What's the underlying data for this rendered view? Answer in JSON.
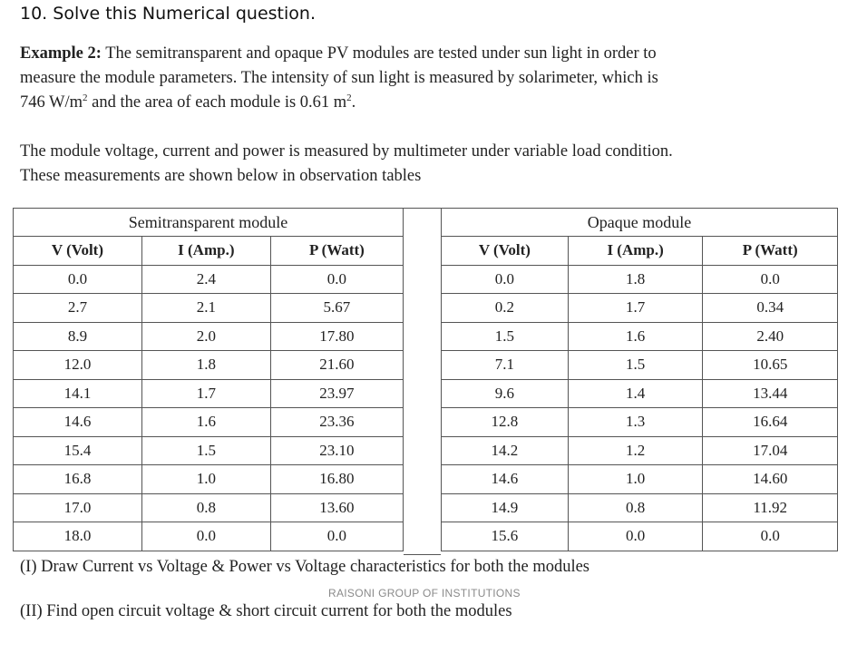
{
  "question_title": "10. Solve this Numerical question.",
  "example": {
    "label": "Example 2:",
    "line1": "The semitransparent and opaque PV modules are tested under sun light in order to",
    "line2": "measure the module parameters. The intensity of sun light is measured by solarimeter, which is",
    "line3_a": "746 W/m",
    "line3_sup1": "2",
    "line3_b": " and the area of each module is 0.61 m",
    "line3_sup2": "2",
    "line3_c": "."
  },
  "measurement_text": {
    "line1": "The module voltage, current and power is measured by multimeter under variable load condition.",
    "line2": "These measurements are shown below in observation tables"
  },
  "tables": {
    "semitransparent": {
      "title": "Semitransparent module",
      "headers": [
        "V (Volt)",
        "I (Amp.)",
        "P (Watt)"
      ],
      "rows": [
        [
          "0.0",
          "2.4",
          "0.0"
        ],
        [
          "2.7",
          "2.1",
          "5.67"
        ],
        [
          "8.9",
          "2.0",
          "17.80"
        ],
        [
          "12.0",
          "1.8",
          "21.60"
        ],
        [
          "14.1",
          "1.7",
          "23.97"
        ],
        [
          "14.6",
          "1.6",
          "23.36"
        ],
        [
          "15.4",
          "1.5",
          "23.10"
        ],
        [
          "16.8",
          "1.0",
          "16.80"
        ],
        [
          "17.0",
          "0.8",
          "13.60"
        ],
        [
          "18.0",
          "0.0",
          "0.0"
        ]
      ]
    },
    "opaque": {
      "title": "Opaque module",
      "headers": [
        "V (Volt)",
        "I (Amp.)",
        "P (Watt)"
      ],
      "rows": [
        [
          "0.0",
          "1.8",
          "0.0"
        ],
        [
          "0.2",
          "1.7",
          "0.34"
        ],
        [
          "1.5",
          "1.6",
          "2.40"
        ],
        [
          "7.1",
          "1.5",
          "10.65"
        ],
        [
          "9.6",
          "1.4",
          "13.44"
        ],
        [
          "12.8",
          "1.3",
          "16.64"
        ],
        [
          "14.2",
          "1.2",
          "17.04"
        ],
        [
          "14.6",
          "1.0",
          "14.60"
        ],
        [
          "14.9",
          "0.8",
          "11.92"
        ],
        [
          "15.6",
          "0.0",
          "0.0"
        ]
      ]
    }
  },
  "parts": {
    "part1": "(I) Draw Current vs Voltage & Power vs Voltage characteristics for both the modules",
    "part2": "(II) Find open circuit voltage & short circuit current for both the modules"
  },
  "watermark": "RAISONI GROUP OF INSTITUTIONS"
}
